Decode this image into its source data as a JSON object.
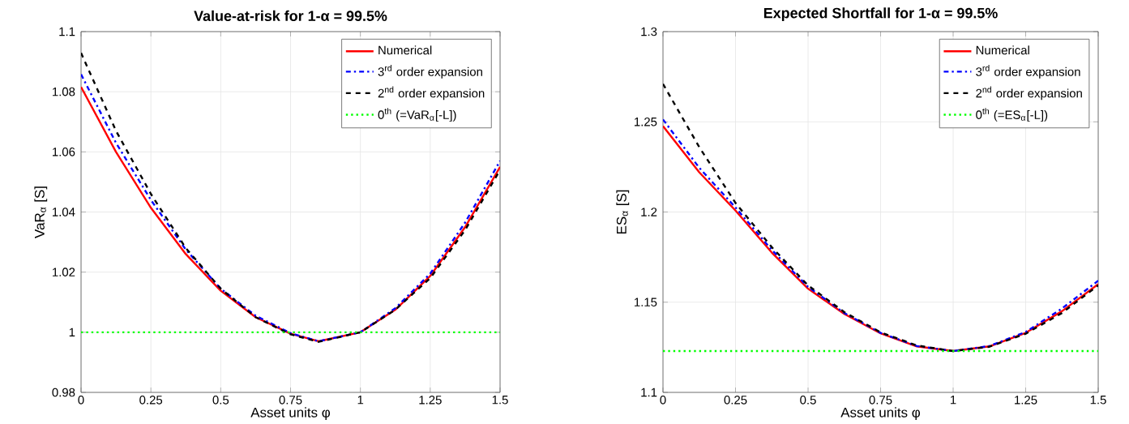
{
  "chart_data": [
    {
      "type": "line",
      "title": "Value-at-risk for 1-α = 99.5%",
      "xlabel": "Asset units φ",
      "ylabel": "VaR$_{α}$ [S]",
      "x": [
        0,
        0.125,
        0.25,
        0.375,
        0.5,
        0.625,
        0.75,
        0.85,
        1,
        1.125,
        1.25,
        1.375,
        1.5
      ],
      "series": [
        {
          "name": "Numerical",
          "color": "#ff0000",
          "line_style": "solid",
          "values": [
            1.0816,
            1.06,
            1.0414,
            1.026,
            1.0138,
            1.005,
            0.9995,
            0.997,
            1.0,
            1.0075,
            1.0187,
            1.035,
            1.055
          ]
        },
        {
          "name": "3$^{rd}$ order expansion",
          "color": "#0000ff",
          "line_style": "dashdot",
          "values": [
            1.0858,
            1.063,
            1.044,
            1.0275,
            1.0145,
            1.0055,
            0.9997,
            0.997,
            1.0,
            1.008,
            1.0195,
            1.0365,
            1.057
          ]
        },
        {
          "name": "2$^{nd}$ order expansion",
          "color": "#000000",
          "line_style": "dashed",
          "values": [
            1.0929,
            1.067,
            1.046,
            1.028,
            1.0145,
            1.005,
            0.9993,
            0.9968,
            1.0,
            1.0075,
            1.018,
            1.034,
            1.054
          ]
        },
        {
          "name": "0$^{th}$ (=VaR$_{α}$[-L])",
          "color": "#00ff00",
          "line_style": "dotted",
          "values": [
            1.0,
            1.0,
            1.0,
            1.0,
            1.0,
            1.0,
            1.0,
            1.0,
            1.0,
            1.0,
            1.0,
            1.0,
            1.0
          ]
        }
      ],
      "xlim": [
        0,
        1.5
      ],
      "ylim": [
        0.98,
        1.1
      ],
      "xticks": [
        0,
        0.25,
        0.5,
        0.75,
        1,
        1.25,
        1.5
      ],
      "yticks": [
        0.98,
        1,
        1.02,
        1.04,
        1.06,
        1.08,
        1.1
      ],
      "grid": true,
      "legend": "top right"
    },
    {
      "type": "line",
      "title": "Expected Shortfall for 1-α = 99.5%",
      "xlabel": "Asset units φ",
      "ylabel": "ES$_{α}$ [S]",
      "x": [
        0,
        0.125,
        0.25,
        0.375,
        0.5,
        0.625,
        0.75,
        0.875,
        1,
        1.125,
        1.25,
        1.375,
        1.5
      ],
      "series": [
        {
          "name": "Numerical",
          "color": "#ff0000",
          "line_style": "solid",
          "values": [
            1.2476,
            1.222,
            1.2008,
            1.1775,
            1.1575,
            1.1435,
            1.1327,
            1.1255,
            1.1229,
            1.1255,
            1.133,
            1.145,
            1.16
          ]
        },
        {
          "name": "3$^{rd}$ order expansion",
          "color": "#0000ff",
          "line_style": "dashdot",
          "values": [
            1.2513,
            1.2245,
            1.2025,
            1.179,
            1.1585,
            1.144,
            1.133,
            1.1257,
            1.1229,
            1.1257,
            1.1335,
            1.1465,
            1.1619
          ]
        },
        {
          "name": "2$^{nd}$ order expansion",
          "color": "#000000",
          "line_style": "dashed",
          "values": [
            1.271,
            1.236,
            1.205,
            1.1805,
            1.1593,
            1.1445,
            1.1333,
            1.126,
            1.1229,
            1.1253,
            1.1325,
            1.144,
            1.1593
          ]
        },
        {
          "name": "0$^{th}$ (=ES$_{α}$[-L])",
          "color": "#00ff00",
          "line_style": "dotted",
          "values": [
            1.1229,
            1.1229,
            1.1229,
            1.1229,
            1.1229,
            1.1229,
            1.1229,
            1.1229,
            1.1229,
            1.1229,
            1.1229,
            1.1229,
            1.1229
          ]
        }
      ],
      "xlim": [
        0,
        1.5
      ],
      "ylim": [
        1.1,
        1.3
      ],
      "xticks": [
        0,
        0.25,
        0.5,
        0.75,
        1,
        1.25,
        1.5
      ],
      "yticks": [
        1.1,
        1.15,
        1.2,
        1.25,
        1.3
      ],
      "grid": true,
      "legend": "top right"
    }
  ]
}
